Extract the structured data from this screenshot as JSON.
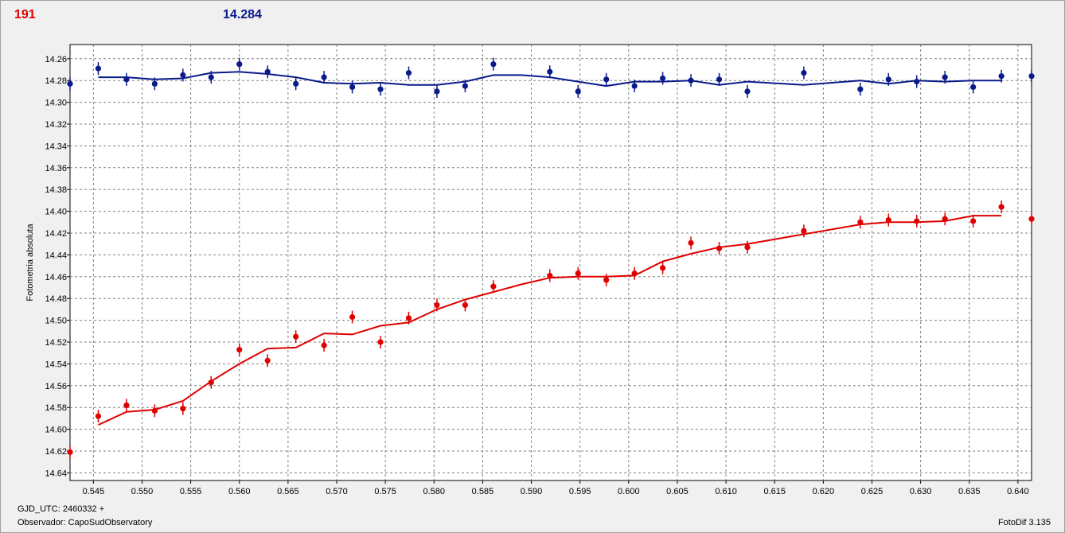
{
  "header": {
    "point_count": "191",
    "magnitude": "14.284"
  },
  "footer": {
    "gjd": "GJD_UTC: 2460332 +",
    "observer": "Observador: CapoSudObservatory",
    "software": "FotoDif 3.135"
  },
  "colors": {
    "target": "#e00000",
    "comparison": "#0a1a8a",
    "grid": "#808080"
  },
  "chart_data": {
    "type": "scatter",
    "ylabel": "Fotometria absoluta",
    "xlabel": "",
    "xlim": [
      0.5426,
      0.6414
    ],
    "ylim": [
      14.647,
      14.247
    ],
    "y_inverted": true,
    "grid": true,
    "x_ticks": [
      "0.545",
      "0.550",
      "0.555",
      "0.560",
      "0.565",
      "0.570",
      "0.575",
      "0.580",
      "0.585",
      "0.590",
      "0.595",
      "0.600",
      "0.605",
      "0.610",
      "0.615",
      "0.620",
      "0.625",
      "0.630",
      "0.635",
      "0.640"
    ],
    "y_ticks": [
      "14.26",
      "14.28",
      "14.30",
      "14.32",
      "14.34",
      "14.36",
      "14.38",
      "14.40",
      "14.42",
      "14.44",
      "14.46",
      "14.48",
      "14.50",
      "14.52",
      "14.54",
      "14.56",
      "14.58",
      "14.60",
      "14.62",
      "14.64"
    ],
    "series": [
      {
        "color": "#0a1a8a",
        "points": [
          [
            0.5426,
            14.283
          ],
          [
            0.5455,
            14.269
          ],
          [
            0.5484,
            14.279
          ],
          [
            0.5513,
            14.283
          ],
          [
            0.5542,
            14.275
          ],
          [
            0.5571,
            14.277
          ],
          [
            0.56,
            14.265
          ],
          [
            0.5629,
            14.272
          ],
          [
            0.5658,
            14.283
          ],
          [
            0.5687,
            14.277
          ],
          [
            0.5716,
            14.286
          ],
          [
            0.5745,
            14.288
          ],
          [
            0.5774,
            14.273
          ],
          [
            0.5803,
            14.29
          ],
          [
            0.5832,
            14.285
          ],
          [
            0.5861,
            14.265
          ],
          [
            0.5919,
            14.272
          ],
          [
            0.5948,
            14.29
          ],
          [
            0.5977,
            14.279
          ],
          [
            0.6006,
            14.285
          ],
          [
            0.6035,
            14.278
          ],
          [
            0.6064,
            14.28
          ],
          [
            0.6093,
            14.279
          ],
          [
            0.6122,
            14.29
          ],
          [
            0.618,
            14.273
          ],
          [
            0.6238,
            14.288
          ],
          [
            0.6267,
            14.279
          ],
          [
            0.6296,
            14.281
          ],
          [
            0.6325,
            14.277
          ],
          [
            0.6354,
            14.286
          ],
          [
            0.6383,
            14.276
          ],
          [
            0.6414,
            14.276
          ]
        ],
        "fit": [
          [
            0.5455,
            14.277
          ],
          [
            0.5484,
            14.277
          ],
          [
            0.5513,
            14.279
          ],
          [
            0.5542,
            14.278
          ],
          [
            0.5571,
            14.273
          ],
          [
            0.56,
            14.272
          ],
          [
            0.5629,
            14.274
          ],
          [
            0.5658,
            14.277
          ],
          [
            0.5687,
            14.282
          ],
          [
            0.5716,
            14.283
          ],
          [
            0.5745,
            14.282
          ],
          [
            0.5774,
            14.284
          ],
          [
            0.5803,
            14.284
          ],
          [
            0.5832,
            14.281
          ],
          [
            0.5861,
            14.275
          ],
          [
            0.589,
            14.275
          ],
          [
            0.5919,
            14.277
          ],
          [
            0.5948,
            14.281
          ],
          [
            0.5977,
            14.285
          ],
          [
            0.6006,
            14.281
          ],
          [
            0.6035,
            14.281
          ],
          [
            0.6064,
            14.28
          ],
          [
            0.6093,
            14.284
          ],
          [
            0.6122,
            14.281
          ],
          [
            0.618,
            14.284
          ],
          [
            0.6238,
            14.28
          ],
          [
            0.6267,
            14.283
          ],
          [
            0.6296,
            14.28
          ],
          [
            0.6325,
            14.281
          ],
          [
            0.6354,
            14.28
          ],
          [
            0.6383,
            14.28
          ]
        ]
      },
      {
        "color": "#e00000",
        "points": [
          [
            0.5426,
            14.621
          ],
          [
            0.5455,
            14.588
          ],
          [
            0.5484,
            14.578
          ],
          [
            0.5513,
            14.583
          ],
          [
            0.5542,
            14.581
          ],
          [
            0.5571,
            14.557
          ],
          [
            0.56,
            14.527
          ],
          [
            0.5629,
            14.537
          ],
          [
            0.5658,
            14.515
          ],
          [
            0.5687,
            14.523
          ],
          [
            0.5716,
            14.497
          ],
          [
            0.5745,
            14.52
          ],
          [
            0.5774,
            14.498
          ],
          [
            0.5803,
            14.486
          ],
          [
            0.5832,
            14.486
          ],
          [
            0.5861,
            14.469
          ],
          [
            0.5919,
            14.459
          ],
          [
            0.5948,
            14.457
          ],
          [
            0.5977,
            14.463
          ],
          [
            0.6006,
            14.457
          ],
          [
            0.6035,
            14.452
          ],
          [
            0.6064,
            14.429
          ],
          [
            0.6093,
            14.434
          ],
          [
            0.6122,
            14.433
          ],
          [
            0.618,
            14.418
          ],
          [
            0.6238,
            14.41
          ],
          [
            0.6267,
            14.408
          ],
          [
            0.6296,
            14.409
          ],
          [
            0.6325,
            14.407
          ],
          [
            0.6354,
            14.409
          ],
          [
            0.6383,
            14.396
          ],
          [
            0.6414,
            14.407
          ]
        ],
        "fit": [
          [
            0.5455,
            14.596
          ],
          [
            0.5484,
            14.584
          ],
          [
            0.5513,
            14.582
          ],
          [
            0.5542,
            14.574
          ],
          [
            0.5571,
            14.556
          ],
          [
            0.56,
            14.54
          ],
          [
            0.5629,
            14.526
          ],
          [
            0.5658,
            14.525
          ],
          [
            0.5687,
            14.512
          ],
          [
            0.5716,
            14.513
          ],
          [
            0.5745,
            14.505
          ],
          [
            0.5774,
            14.502
          ],
          [
            0.5803,
            14.49
          ],
          [
            0.5832,
            14.481
          ],
          [
            0.5861,
            14.474
          ],
          [
            0.589,
            14.467
          ],
          [
            0.5919,
            14.461
          ],
          [
            0.5948,
            14.46
          ],
          [
            0.5977,
            14.46
          ],
          [
            0.6006,
            14.459
          ],
          [
            0.6035,
            14.446
          ],
          [
            0.6064,
            14.439
          ],
          [
            0.6093,
            14.433
          ],
          [
            0.6122,
            14.43
          ],
          [
            0.618,
            14.421
          ],
          [
            0.6238,
            14.412
          ],
          [
            0.6267,
            14.41
          ],
          [
            0.6296,
            14.41
          ],
          [
            0.6325,
            14.409
          ],
          [
            0.6354,
            14.404
          ],
          [
            0.6383,
            14.404
          ]
        ]
      }
    ]
  }
}
